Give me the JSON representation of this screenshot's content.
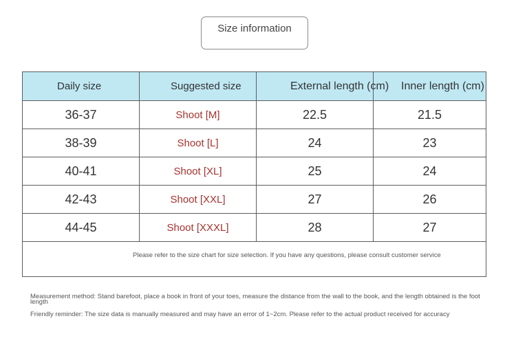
{
  "title": "Size information",
  "table": {
    "headers": [
      "Daily size",
      "Suggested size",
      "External length (cm)",
      "Inner length (cm)"
    ],
    "rows": [
      [
        "36-37",
        "Shoot [M]",
        "22.5",
        "21.5"
      ],
      [
        "38-39",
        "Shoot [L]",
        "24",
        "23"
      ],
      [
        "40-41",
        "Shoot [XL]",
        "25",
        "24"
      ],
      [
        "42-43",
        "Shoot [XXL]",
        "27",
        "26"
      ],
      [
        "44-45",
        "Shoot [XXXL]",
        "28",
        "27"
      ]
    ],
    "note": "Please refer to the size chart for size selection. If you have any questions, please consult customer service"
  },
  "footnotes": {
    "measurement": "Measurement method: Stand barefoot, place a book in front of your toes, measure the distance from the wall to the book, and the length obtained is the foot length",
    "reminder": "Friendly reminder: The size data is manually measured and may have an error of 1~2cm. Please refer to the actual product received for accuracy"
  },
  "colors": {
    "header_bg": "#bfe8f3",
    "suggested_text": "#a8322e",
    "border": "#5c5c5c"
  }
}
